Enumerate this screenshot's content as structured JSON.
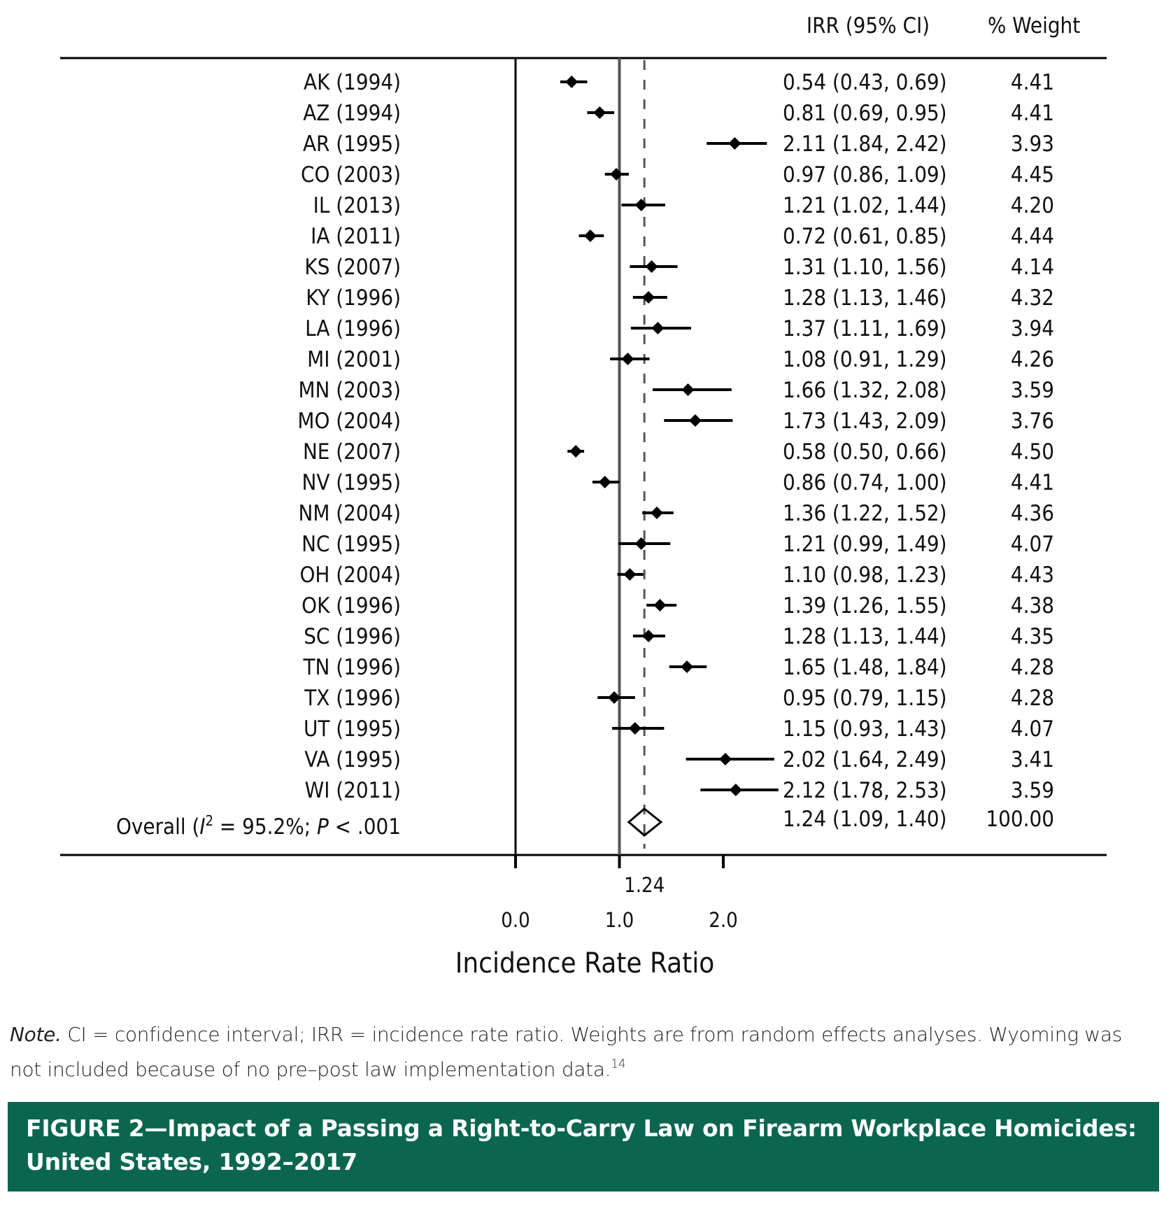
{
  "chart_data": {
    "type": "forest",
    "xlabel": "Incidence Rate Ratio",
    "xlim": [
      0.0,
      2.53
    ],
    "x_ticks": [
      0.0,
      1.0,
      2.0
    ],
    "x_tick_labels": [
      "0.0",
      "1.0",
      "2.0"
    ],
    "reference_line": 1.0,
    "pooled_line": 1.24,
    "pooled_line_label": "1.24",
    "column_headers": {
      "irr": "IRR (95% CI)",
      "weight": "% Weight"
    },
    "studies": [
      {
        "label": "AK (1994)",
        "irr": 0.54,
        "lo": 0.43,
        "hi": 0.69,
        "irr_text": "0.54 (0.43, 0.69)",
        "weight": "4.41"
      },
      {
        "label": "AZ (1994)",
        "irr": 0.81,
        "lo": 0.69,
        "hi": 0.95,
        "irr_text": "0.81 (0.69, 0.95)",
        "weight": "4.41"
      },
      {
        "label": "AR (1995)",
        "irr": 2.11,
        "lo": 1.84,
        "hi": 2.42,
        "irr_text": "2.11 (1.84, 2.42)",
        "weight": "3.93"
      },
      {
        "label": "CO (2003)",
        "irr": 0.97,
        "lo": 0.86,
        "hi": 1.09,
        "irr_text": "0.97 (0.86, 1.09)",
        "weight": "4.45"
      },
      {
        "label": "IL (2013)",
        "irr": 1.21,
        "lo": 1.02,
        "hi": 1.44,
        "irr_text": "1.21 (1.02, 1.44)",
        "weight": "4.20"
      },
      {
        "label": "IA (2011)",
        "irr": 0.72,
        "lo": 0.61,
        "hi": 0.85,
        "irr_text": "0.72 (0.61, 0.85)",
        "weight": "4.44"
      },
      {
        "label": "KS (2007)",
        "irr": 1.31,
        "lo": 1.1,
        "hi": 1.56,
        "irr_text": "1.31 (1.10, 1.56)",
        "weight": "4.14"
      },
      {
        "label": "KY (1996)",
        "irr": 1.28,
        "lo": 1.13,
        "hi": 1.46,
        "irr_text": "1.28 (1.13, 1.46)",
        "weight": "4.32"
      },
      {
        "label": "LA (1996)",
        "irr": 1.37,
        "lo": 1.11,
        "hi": 1.69,
        "irr_text": "1.37 (1.11, 1.69)",
        "weight": "3.94"
      },
      {
        "label": "MI (2001)",
        "irr": 1.08,
        "lo": 0.91,
        "hi": 1.29,
        "irr_text": "1.08 (0.91, 1.29)",
        "weight": "4.26"
      },
      {
        "label": "MN (2003)",
        "irr": 1.66,
        "lo": 1.32,
        "hi": 2.08,
        "irr_text": "1.66 (1.32, 2.08)",
        "weight": "3.59"
      },
      {
        "label": "MO (2004)",
        "irr": 1.73,
        "lo": 1.43,
        "hi": 2.09,
        "irr_text": "1.73 (1.43, 2.09)",
        "weight": "3.76"
      },
      {
        "label": "NE (2007)",
        "irr": 0.58,
        "lo": 0.5,
        "hi": 0.66,
        "irr_text": "0.58 (0.50, 0.66)",
        "weight": "4.50"
      },
      {
        "label": "NV (1995)",
        "irr": 0.86,
        "lo": 0.74,
        "hi": 1.0,
        "irr_text": "0.86 (0.74, 1.00)",
        "weight": "4.41"
      },
      {
        "label": "NM (2004)",
        "irr": 1.36,
        "lo": 1.22,
        "hi": 1.52,
        "irr_text": "1.36 (1.22, 1.52)",
        "weight": "4.36"
      },
      {
        "label": "NC (1995)",
        "irr": 1.21,
        "lo": 0.99,
        "hi": 1.49,
        "irr_text": "1.21 (0.99, 1.49)",
        "weight": "4.07"
      },
      {
        "label": "OH (2004)",
        "irr": 1.1,
        "lo": 0.98,
        "hi": 1.23,
        "irr_text": "1.10 (0.98, 1.23)",
        "weight": "4.43"
      },
      {
        "label": "OK (1996)",
        "irr": 1.39,
        "lo": 1.26,
        "hi": 1.55,
        "irr_text": "1.39 (1.26, 1.55)",
        "weight": "4.38"
      },
      {
        "label": "SC (1996)",
        "irr": 1.28,
        "lo": 1.13,
        "hi": 1.44,
        "irr_text": "1.28 (1.13, 1.44)",
        "weight": "4.35"
      },
      {
        "label": "TN (1996)",
        "irr": 1.65,
        "lo": 1.48,
        "hi": 1.84,
        "irr_text": "1.65 (1.48, 1.84)",
        "weight": "4.28"
      },
      {
        "label": "TX (1996)",
        "irr": 0.95,
        "lo": 0.79,
        "hi": 1.15,
        "irr_text": "0.95 (0.79, 1.15)",
        "weight": "4.28"
      },
      {
        "label": "UT (1995)",
        "irr": 1.15,
        "lo": 0.93,
        "hi": 1.43,
        "irr_text": "1.15 (0.93, 1.43)",
        "weight": "4.07"
      },
      {
        "label": "VA (1995)",
        "irr": 2.02,
        "lo": 1.64,
        "hi": 2.49,
        "irr_text": "2.02 (1.64, 2.49)",
        "weight": "3.41"
      },
      {
        "label": "WI (2011)",
        "irr": 2.12,
        "lo": 1.78,
        "hi": 2.53,
        "irr_text": "2.12 (1.78, 2.53)",
        "weight": "3.59"
      }
    ],
    "overall": {
      "label_prefix": "Overall (",
      "i2_symbol": "I",
      "i2_sup": "2",
      "i2_text": " = 95.2%; ",
      "p_symbol": "P",
      "p_text": " < .001",
      "irr": 1.24,
      "lo": 1.09,
      "hi": 1.4,
      "irr_text": "1.24 (1.09, 1.40)",
      "weight": "100.00"
    },
    "colors": {
      "marker": "#000000",
      "reference_line": "#555555",
      "pooled_line": "#555555"
    }
  },
  "note": {
    "lead": "Note.",
    "text": " CI = confidence interval; IRR = incidence rate ratio. Weights are from random effects analyses. Wyoming was not included because of no pre–post law implementation data.",
    "ref": "14"
  },
  "caption": {
    "text": "FIGURE 2—Impact of a Passing a Right-to-Carry Law on Firearm Workplace Homicides: United States, 1992–2017",
    "background": "#0b6650"
  }
}
